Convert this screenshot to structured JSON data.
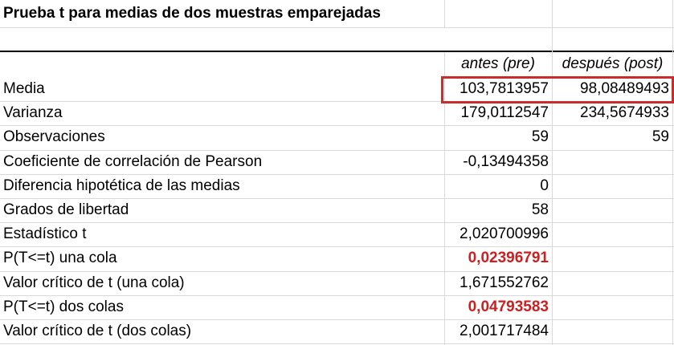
{
  "title": "Prueba t para medias de dos muestras emparejadas",
  "columns": [
    "antes (pre)",
    "después (post)"
  ],
  "rows": [
    {
      "label": "Media",
      "pre": "103,7813957",
      "post": "98,08489493"
    },
    {
      "label": "Varianza",
      "pre": "179,0112547",
      "post": "234,5674933"
    },
    {
      "label": "Observaciones",
      "pre": "59",
      "post": "59"
    },
    {
      "label": "Coeficiente de correlación de Pearson",
      "pre": "-0,13494358",
      "post": ""
    },
    {
      "label": "Diferencia hipotética de las medias",
      "pre": "0",
      "post": ""
    },
    {
      "label": "Grados de libertad",
      "pre": "58",
      "post": ""
    },
    {
      "label": "Estadístico t",
      "pre": "2,020700996",
      "post": ""
    },
    {
      "label": "P(T<=t) una cola",
      "pre": "0,02396791",
      "post": ""
    },
    {
      "label": "Valor crítico de t (una cola)",
      "pre": "1,671552762",
      "post": ""
    },
    {
      "label": "P(T<=t) dos colas",
      "pre": "0,04793583",
      "post": ""
    },
    {
      "label": "Valor crítico de t (dos colas)",
      "pre": "2,001717484",
      "post": ""
    }
  ],
  "colors": {
    "highlight_border": "#cc2b2b",
    "emphasis_text": "#cc1f1f",
    "grid": "#d9d9d9"
  }
}
